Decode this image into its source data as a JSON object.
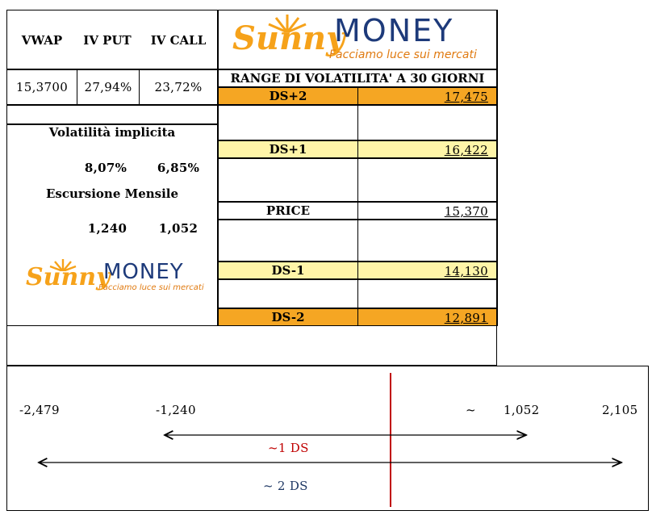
{
  "header": {
    "col1": "VWAP",
    "col2": "IV PUT",
    "col3": "IV CALL",
    "vwap": "15,3700",
    "iv_put": "27,94%",
    "iv_call": "23,72%"
  },
  "logo": {
    "word1": "Sunny",
    "word2": "MONEY",
    "tagline": "Facciamo luce sui mercati"
  },
  "left_panel": {
    "vol_title": "Volatilità implicita",
    "vol_put": "8,07%",
    "vol_call": "6,85%",
    "exc_title": "Escursione Mensile",
    "exc_put": "1,240",
    "exc_call": "1,052"
  },
  "range": {
    "title": "RANGE DI VOLATILITA' A 30 GIORNI",
    "rows": [
      {
        "label": "DS+2",
        "value": "17,475"
      },
      {
        "label": "DS+1",
        "value": "16,422"
      },
      {
        "label": "PRICE",
        "value": "15,370"
      },
      {
        "label": "DS-1",
        "value": "14,130"
      },
      {
        "label": "DS-2",
        "value": "12,891"
      }
    ]
  },
  "diagram": {
    "left2": "-2,479",
    "left1": "-1,240",
    "tilde": "~",
    "right1": "1,052",
    "right2": "2,105",
    "label1": "~1 DS",
    "label2": "~ 2 DS"
  },
  "colors": {
    "orange": "#f5a623",
    "yellow": "#fff5a8",
    "red_line": "#c00000",
    "label1": "#c00000",
    "label2": "#1f3864"
  }
}
